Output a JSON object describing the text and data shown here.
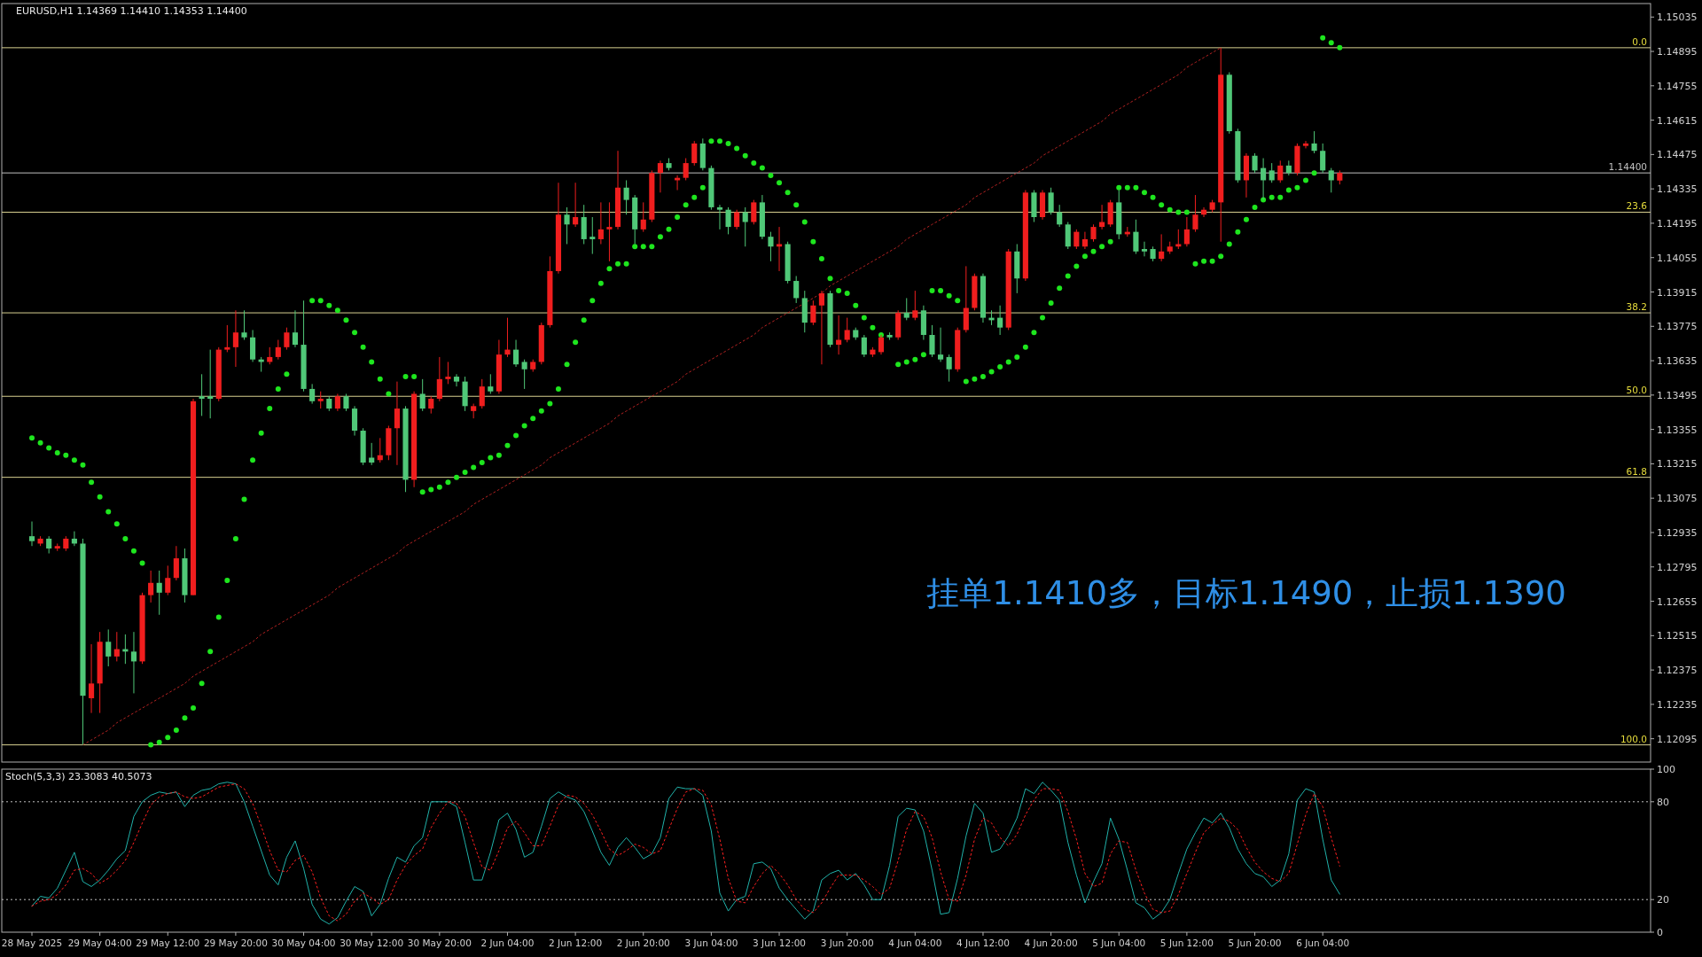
{
  "chart_data": [
    {
      "type": "candlestick",
      "title": "EURUSD,H1  1.14369 1.14410 1.14353 1.14400",
      "annotations": [
        "挂单1.1410多，目标1.1490，止损1.1390",
        {
          "text": "0.0",
          "y": 1.1491
        },
        {
          "text": "23.6",
          "y": 1.1424
        },
        {
          "text": "38.2",
          "y": 1.1383
        },
        {
          "text": "50.0",
          "y": 1.1349
        },
        {
          "text": "61.8",
          "y": 1.1316
        },
        {
          "text": "100.0",
          "y": 1.1207
        }
      ],
      "ylim": [
        1.12,
        1.1509
      ],
      "yticks": [
        1.12095,
        1.12235,
        1.12375,
        1.12515,
        1.12655,
        1.12795,
        1.12935,
        1.13075,
        1.13215,
        1.13355,
        1.13495,
        1.13635,
        1.13775,
        1.13915,
        1.14055,
        1.14195,
        1.14335,
        1.14475,
        1.14615,
        1.14755,
        1.14895,
        1.15035
      ],
      "ref_lines": [
        {
          "axis": "y",
          "value": 1.1491,
          "color": "#d8d090",
          "line_style": "solid"
        },
        {
          "axis": "y",
          "value": 1.1424,
          "color": "#d8d090",
          "line_style": "solid"
        },
        {
          "axis": "y",
          "value": 1.1383,
          "color": "#d8d090",
          "line_style": "solid"
        },
        {
          "axis": "y",
          "value": 1.1349,
          "color": "#d8d090",
          "line_style": "solid"
        },
        {
          "axis": "y",
          "value": 1.1316,
          "color": "#d8d090",
          "line_style": "solid"
        },
        {
          "axis": "y",
          "value": 1.1207,
          "color": "#d8d090",
          "line_style": "solid"
        },
        {
          "axis": "y",
          "value": 1.144,
          "label": "1.14400",
          "color": "#c0c0c0",
          "line_style": "solid"
        }
      ],
      "series": [
        {
          "color": "#f01e1e",
          "ohlc": [
            null,
            [
              1.1289,
              1.1292,
              1.1288,
              1.1291
            ],
            null,
            [
              1.1287,
              1.1289,
              1.1286,
              1.1288
            ],
            [
              1.1287,
              1.1292,
              1.1286,
              1.1291
            ],
            null,
            null,
            [
              1.1226,
              1.1248,
              1.122,
              1.1232
            ],
            [
              1.1232,
              1.1253,
              1.122,
              1.1249
            ],
            null,
            [
              1.1243,
              1.1253,
              1.1241,
              1.1246
            ],
            null,
            null,
            [
              1.1241,
              1.1269,
              1.124,
              1.1268
            ],
            [
              1.1268,
              1.1278,
              1.1265,
              1.1273
            ],
            null,
            [
              1.1269,
              1.128,
              1.1268,
              1.1275
            ],
            [
              1.1275,
              1.1288,
              1.1274,
              1.1283
            ],
            null,
            [
              1.1268,
              1.1348,
              1.1268,
              1.1347
            ],
            null,
            null,
            [
              1.1348,
              1.1369,
              1.1347,
              1.1368
            ],
            [
              1.1368,
              1.1378,
              1.1367,
              1.1369
            ],
            [
              1.1369,
              1.1384,
              1.1361,
              1.1375
            ],
            null,
            null,
            null,
            [
              1.1363,
              1.1369,
              1.1362,
              1.1365
            ],
            [
              1.1365,
              1.1372,
              1.1364,
              1.1369
            ],
            [
              1.1369,
              1.1377,
              1.1368,
              1.1375
            ],
            null,
            null,
            null,
            [
              1.1347,
              1.1351,
              1.1344,
              1.1348
            ],
            null,
            [
              1.1344,
              1.135,
              1.1343,
              1.1349
            ],
            null,
            null,
            null,
            null,
            [
              1.1323,
              1.1332,
              1.1322,
              1.1325
            ],
            [
              1.1325,
              1.1337,
              1.1323,
              1.1336
            ],
            [
              1.1336,
              1.1355,
              1.1321,
              1.1344
            ],
            null,
            [
              1.1315,
              1.1351,
              1.1312,
              1.135
            ],
            null,
            [
              1.1344,
              1.1349,
              1.1342,
              1.1348
            ],
            [
              1.1348,
              1.1365,
              1.1347,
              1.1356
            ],
            [
              1.1356,
              1.1363,
              1.1354,
              1.1357
            ],
            null,
            null,
            [
              1.1343,
              1.1346,
              1.134,
              1.1345
            ],
            [
              1.1345,
              1.1356,
              1.1344,
              1.1353
            ],
            null,
            [
              1.1351,
              1.1372,
              1.135,
              1.1366
            ],
            [
              1.1366,
              1.1381,
              1.1365,
              1.1368
            ],
            null,
            null,
            [
              1.136,
              1.1364,
              1.1359,
              1.1363
            ],
            [
              1.1363,
              1.1379,
              1.1362,
              1.1378
            ],
            [
              1.1378,
              1.1406,
              1.1377,
              1.14
            ],
            [
              1.14,
              1.1436,
              1.1399,
              1.1423
            ],
            null,
            [
              1.1419,
              1.1436,
              1.1418,
              1.1422
            ],
            null,
            null,
            [
              1.1413,
              1.1428,
              1.1411,
              1.1417
            ],
            [
              1.1417,
              1.1428,
              1.1404,
              1.1418
            ],
            [
              1.1418,
              1.1449,
              1.1417,
              1.1434
            ],
            null,
            null,
            [
              1.1417,
              1.1428,
              1.1416,
              1.1421
            ],
            [
              1.1421,
              1.1441,
              1.142,
              1.144
            ],
            [
              1.144,
              1.1445,
              1.1432,
              1.1444
            ],
            null,
            [
              1.1437,
              1.1439,
              1.1433,
              1.1438
            ],
            [
              1.1438,
              1.1446,
              1.1437,
              1.1444
            ],
            [
              1.1444,
              1.1453,
              1.1443,
              1.1452
            ],
            null,
            null,
            null,
            null,
            [
              1.1418,
              1.1425,
              1.1417,
              1.1424
            ],
            null,
            [
              1.142,
              1.1429,
              1.1419,
              1.1428
            ],
            null,
            null,
            [
              1.141,
              1.1418,
              1.14,
              1.1411
            ],
            null,
            null,
            null,
            [
              1.1379,
              1.1388,
              1.1378,
              1.1386
            ],
            [
              1.1386,
              1.1392,
              1.1362,
              1.1391
            ],
            null,
            [
              1.137,
              1.1382,
              1.1366,
              1.1372
            ],
            [
              1.1372,
              1.1381,
              1.1371,
              1.1376
            ],
            null,
            null,
            [
              1.1366,
              1.1369,
              1.1365,
              1.1368
            ],
            [
              1.1367,
              1.1374,
              1.1366,
              1.1373
            ],
            null,
            [
              1.1373,
              1.1384,
              1.1372,
              1.1383
            ],
            null,
            [
              1.1381,
              1.1392,
              1.138,
              1.1384
            ],
            null,
            null,
            null,
            null,
            [
              1.136,
              1.1377,
              1.1359,
              1.1376
            ],
            [
              1.1376,
              1.1402,
              1.1375,
              1.1385
            ],
            [
              1.1385,
              1.1399,
              1.1384,
              1.1398
            ],
            null,
            null,
            null,
            [
              1.1377,
              1.1409,
              1.1376,
              1.1408
            ],
            null,
            [
              1.1397,
              1.1433,
              1.1396,
              1.1432
            ],
            null,
            [
              1.1422,
              1.1433,
              1.1421,
              1.1432
            ],
            null,
            null,
            null,
            [
              1.141,
              1.1417,
              1.1409,
              1.1416
            ],
            [
              1.141,
              1.1416,
              1.1409,
              1.1413
            ],
            [
              1.1413,
              1.1419,
              1.1412,
              1.1418
            ],
            [
              1.1418,
              1.1427,
              1.1417,
              1.142
            ],
            [
              1.1419,
              1.1429,
              1.1418,
              1.1428
            ],
            null,
            [
              1.1415,
              1.1418,
              1.1414,
              1.1416
            ],
            null,
            null,
            null,
            [
              1.1405,
              1.1415,
              1.1404,
              1.1408
            ],
            [
              1.1408,
              1.1412,
              1.1407,
              1.141
            ],
            [
              1.141,
              1.1417,
              1.1409,
              1.1411
            ],
            [
              1.1411,
              1.1422,
              1.141,
              1.1417
            ],
            [
              1.1417,
              1.1431,
              1.1416,
              1.1423
            ],
            [
              1.1423,
              1.1426,
              1.1422,
              1.1425
            ],
            [
              1.1425,
              1.1429,
              1.1424,
              1.1428
            ],
            [
              1.1428,
              1.1491,
              1.1412,
              1.148
            ],
            null,
            null,
            [
              1.1437,
              1.1448,
              1.143,
              1.1447
            ],
            null,
            null,
            null,
            [
              1.1437,
              1.1445,
              1.1436,
              1.1443
            ],
            null,
            [
              1.144,
              1.1452,
              1.1439,
              1.1451
            ],
            [
              1.1451,
              1.1453,
              1.145,
              1.1452
            ],
            null,
            null,
            null,
            [
              1.14369,
              1.1441,
              1.14353,
              1.144
            ]
          ]
        },
        {
          "color": "#50c878",
          "ohlc": [
            [
              1.1292,
              1.1298,
              1.1288,
              1.129
            ],
            null,
            [
              1.1291,
              1.1292,
              1.1285,
              1.1287
            ],
            null,
            null,
            [
              1.1291,
              1.1294,
              1.1288,
              1.1289
            ],
            [
              1.1289,
              1.1291,
              1.1207,
              1.1227
            ],
            null,
            null,
            [
              1.1249,
              1.1254,
              1.1239,
              1.1243
            ],
            null,
            [
              1.1246,
              1.1252,
              1.124,
              1.1245
            ],
            [
              1.1245,
              1.1253,
              1.1228,
              1.1241
            ],
            null,
            null,
            [
              1.1273,
              1.1278,
              1.126,
              1.1269
            ],
            null,
            null,
            [
              1.1283,
              1.1287,
              1.1265,
              1.1268
            ],
            null,
            [
              1.1349,
              1.1358,
              1.1341,
              1.1348
            ],
            [
              1.1349,
              1.1368,
              1.134,
              1.1348
            ],
            null,
            null,
            null,
            [
              1.1375,
              1.1384,
              1.1372,
              1.1373
            ],
            [
              1.1373,
              1.1376,
              1.1363,
              1.1364
            ],
            [
              1.1364,
              1.1365,
              1.1359,
              1.1363
            ],
            null,
            null,
            null,
            [
              1.1375,
              1.1384,
              1.1369,
              1.137
            ],
            [
              1.137,
              1.1388,
              1.1351,
              1.1352
            ],
            [
              1.1352,
              1.1354,
              1.1346,
              1.1347
            ],
            null,
            [
              1.1348,
              1.1349,
              1.1343,
              1.1344
            ],
            null,
            [
              1.1349,
              1.135,
              1.1343,
              1.1344
            ],
            [
              1.1344,
              1.1345,
              1.1333,
              1.1335
            ],
            [
              1.1335,
              1.1336,
              1.1321,
              1.1322
            ],
            [
              1.1324,
              1.133,
              1.1321,
              1.1322
            ],
            null,
            null,
            null,
            [
              1.1344,
              1.1345,
              1.131,
              1.1315
            ],
            null,
            [
              1.135,
              1.1356,
              1.1343,
              1.1344
            ],
            null,
            null,
            null,
            [
              1.1357,
              1.1358,
              1.1353,
              1.1355
            ],
            [
              1.1355,
              1.1357,
              1.1343,
              1.1345
            ],
            null,
            null,
            [
              1.1353,
              1.1358,
              1.135,
              1.1351
            ],
            null,
            null,
            [
              1.1368,
              1.1372,
              1.1361,
              1.1362
            ],
            [
              1.1363,
              1.1364,
              1.1352,
              1.136
            ],
            null,
            null,
            null,
            null,
            [
              1.1423,
              1.1426,
              1.1411,
              1.1419
            ],
            null,
            [
              1.1422,
              1.1427,
              1.1411,
              1.1413
            ],
            [
              1.1414,
              1.1422,
              1.1407,
              1.1413
            ],
            null,
            null,
            null,
            [
              1.1434,
              1.1437,
              1.1423,
              1.1429
            ],
            [
              1.143,
              1.1431,
              1.1411,
              1.1417
            ],
            null,
            null,
            null,
            [
              1.1444,
              1.1446,
              1.1441,
              1.1442
            ],
            null,
            null,
            null,
            [
              1.1452,
              1.1454,
              1.1441,
              1.1442
            ],
            [
              1.1442,
              1.1443,
              1.1425,
              1.1426
            ],
            [
              1.1426,
              1.1427,
              1.1417,
              1.1425
            ],
            [
              1.1425,
              1.1426,
              1.1415,
              1.1418
            ],
            null,
            [
              1.1424,
              1.1426,
              1.141,
              1.142
            ],
            null,
            [
              1.1428,
              1.1431,
              1.1413,
              1.1414
            ],
            [
              1.1414,
              1.1416,
              1.1404,
              1.141
            ],
            null,
            [
              1.1411,
              1.1412,
              1.1395,
              1.1396
            ],
            [
              1.1396,
              1.1398,
              1.1387,
              1.1389
            ],
            [
              1.1389,
              1.1392,
              1.1375,
              1.1379
            ],
            null,
            null,
            [
              1.1391,
              1.1392,
              1.1369,
              1.137
            ],
            null,
            null,
            [
              1.1376,
              1.1377,
              1.1372,
              1.1373
            ],
            [
              1.1373,
              1.1374,
              1.1365,
              1.1366
            ],
            null,
            null,
            [
              1.1374,
              1.1375,
              1.1372,
              1.1373
            ],
            null,
            [
              1.1383,
              1.1389,
              1.138,
              1.1381
            ],
            null,
            [
              1.1384,
              1.1386,
              1.1372,
              1.1374
            ],
            [
              1.1374,
              1.1378,
              1.1365,
              1.1366
            ],
            [
              1.1366,
              1.1377,
              1.1363,
              1.1364
            ],
            [
              1.1365,
              1.1366,
              1.1355,
              1.136
            ],
            null,
            null,
            null,
            [
              1.1398,
              1.1399,
              1.1379,
              1.1381
            ],
            [
              1.1381,
              1.1384,
              1.1378,
              1.138
            ],
            [
              1.1381,
              1.1386,
              1.1374,
              1.1377
            ],
            null,
            [
              1.1408,
              1.1411,
              1.1391,
              1.1397
            ],
            null,
            [
              1.1432,
              1.1433,
              1.142,
              1.1422
            ],
            null,
            [
              1.1432,
              1.1434,
              1.1423,
              1.1424
            ],
            [
              1.1424,
              1.1427,
              1.1418,
              1.1419
            ],
            [
              1.1419,
              1.142,
              1.1409,
              1.141
            ],
            null,
            null,
            null,
            null,
            null,
            [
              1.1428,
              1.1433,
              1.1413,
              1.1415
            ],
            null,
            [
              1.1416,
              1.1421,
              1.1407,
              1.1408
            ],
            [
              1.1409,
              1.1412,
              1.1406,
              1.1408
            ],
            [
              1.1409,
              1.141,
              1.1404,
              1.1405
            ],
            null,
            null,
            null,
            null,
            null,
            null,
            null,
            null,
            [
              1.148,
              1.1481,
              1.1456,
              1.1457
            ],
            [
              1.1457,
              1.1458,
              1.1436,
              1.1437
            ],
            null,
            [
              1.1447,
              1.1448,
              1.144,
              1.1441
            ],
            [
              1.1442,
              1.1446,
              1.1429,
              1.1437
            ],
            [
              1.1441,
              1.1444,
              1.1436,
              1.1437
            ],
            null,
            [
              1.1443,
              1.1445,
              1.1439,
              1.144
            ],
            null,
            null,
            [
              1.1452,
              1.1457,
              1.1448,
              1.1449
            ],
            [
              1.1449,
              1.1452,
              1.144,
              1.1441
            ],
            [
              1.1441,
              1.1442,
              1.1432,
              1.1437
            ],
            null
          ]
        },
        {
          "type": "scatter",
          "color": "#1ee61e",
          "marker": "circle",
          "values": [
            1.1332,
            1.133,
            1.1328,
            1.1326,
            1.1325,
            1.1323,
            1.1321,
            1.1314,
            1.1308,
            1.1302,
            1.1297,
            1.1291,
            1.1286,
            1.1281,
            1.1207,
            1.1208,
            1.121,
            1.1213,
            1.1218,
            1.1222,
            1.1232,
            1.1245,
            1.1259,
            1.1274,
            1.1291,
            1.1307,
            1.1323,
            1.1334,
            1.1344,
            1.1352,
            1.1358,
            null,
            null,
            1.1388,
            1.1388,
            1.1386,
            1.1384,
            1.138,
            1.1375,
            1.1369,
            1.1363,
            1.1356,
            1.135,
            null,
            1.1357,
            1.1357,
            1.131,
            1.1311,
            1.1312,
            1.1314,
            1.1316,
            1.1318,
            1.132,
            1.1322,
            1.1324,
            1.1325,
            1.1329,
            1.1333,
            1.1337,
            1.134,
            1.1343,
            1.1346,
            1.1352,
            1.1362,
            1.1371,
            1.138,
            1.1388,
            1.1395,
            1.1401,
            1.1403,
            1.1403,
            1.141,
            1.141,
            1.141,
            1.1414,
            1.1417,
            1.1422,
            1.1427,
            1.143,
            1.1434,
            1.1453,
            1.1453,
            1.1452,
            1.145,
            1.1447,
            1.1444,
            1.1442,
            1.1439,
            1.1436,
            1.1432,
            1.1427,
            1.142,
            1.1412,
            1.1405,
            1.1397,
            1.1392,
            1.1391,
            1.1386,
            1.1381,
            1.1377,
            1.1374,
            null,
            1.1362,
            1.1363,
            1.1364,
            1.1366,
            1.1392,
            1.1392,
            1.139,
            1.1388,
            1.1355,
            1.1356,
            1.1357,
            1.1359,
            1.1361,
            1.1363,
            1.1365,
            1.1369,
            1.1375,
            1.1381,
            1.1387,
            1.1393,
            1.1398,
            1.1402,
            1.1406,
            1.1408,
            1.141,
            1.1412,
            1.1434,
            1.1434,
            1.1434,
            1.1432,
            1.143,
            1.1427,
            1.1425,
            1.1424,
            1.1424,
            1.1403,
            1.1404,
            1.1404,
            1.1406,
            1.1411,
            1.1416,
            1.1421,
            1.1426,
            1.1429,
            1.143,
            1.143,
            1.1433,
            1.1434,
            1.1437,
            1.144,
            1.1495,
            1.1493,
            1.1491
          ]
        },
        {
          "type": "line",
          "color": "#b22222",
          "line_style": "dotted",
          "values": [
            null,
            null,
            null,
            null,
            null,
            null,
            1.1207,
            1.1209,
            1.1211,
            1.1213,
            1.1216,
            1.1218,
            1.122,
            1.1222,
            1.1224,
            1.1226,
            1.1228,
            1.123,
            1.1232,
            1.1235,
            1.1237,
            1.1239,
            1.1241,
            1.1243,
            1.1245,
            1.1247,
            1.1249,
            1.1252,
            1.1254,
            1.1256,
            1.1258,
            1.126,
            1.1262,
            1.1264,
            1.1266,
            1.1268,
            1.1271,
            1.1273,
            1.1275,
            1.1277,
            1.1279,
            1.1281,
            1.1283,
            1.1285,
            1.1288,
            1.129,
            1.1292,
            1.1294,
            1.1296,
            1.1298,
            1.13,
            1.1302,
            1.1305,
            1.1307,
            1.1309,
            1.1311,
            1.1313,
            1.1315,
            1.1317,
            1.1319,
            1.1321,
            1.1324,
            1.1326,
            1.1328,
            1.133,
            1.1332,
            1.1334,
            1.1336,
            1.1338,
            1.1341,
            1.1343,
            1.1345,
            1.1347,
            1.1349,
            1.1351,
            1.1353,
            1.1355,
            1.1358,
            1.136,
            1.1362,
            1.1364,
            1.1366,
            1.1368,
            1.137,
            1.1372,
            1.1374,
            1.1377,
            1.1379,
            1.1381,
            1.1383,
            1.1385,
            1.1387,
            1.1389,
            1.1391,
            1.1394,
            1.1396,
            1.1398,
            1.14,
            1.1402,
            1.1404,
            1.1406,
            1.1408,
            1.141,
            1.1413,
            1.1415,
            1.1417,
            1.1419,
            1.1421,
            1.1423,
            1.1425,
            1.1427,
            1.143,
            1.1432,
            1.1434,
            1.1436,
            1.1438,
            1.144,
            1.1442,
            1.1444,
            1.1447,
            1.1449,
            1.1451,
            1.1453,
            1.1455,
            1.1457,
            1.1459,
            1.1461,
            1.1464,
            1.1466,
            1.1468,
            1.147,
            1.1472,
            1.1474,
            1.1476,
            1.1478,
            1.148,
            1.1483,
            1.1485,
            1.1487,
            1.1489,
            1.1491,
            null,
            null,
            null,
            null,
            null,
            null,
            null,
            null,
            null,
            null,
            null,
            null,
            null,
            null
          ]
        }
      ]
    },
    {
      "type": "line",
      "title": "Stoch(5,3,3) 23.3083 40.5073",
      "categories": [
        "28 May 2025",
        null,
        null,
        null,
        null,
        null,
        null,
        null,
        "29 May 04:00",
        null,
        null,
        null,
        null,
        null,
        null,
        null,
        "29 May 12:00",
        null,
        null,
        null,
        null,
        null,
        null,
        null,
        "29 May 20:00",
        null,
        null,
        null,
        null,
        null,
        null,
        null,
        "30 May 04:00",
        null,
        null,
        null,
        null,
        null,
        null,
        null,
        "30 May 12:00",
        null,
        null,
        null,
        null,
        null,
        null,
        null,
        "30 May 20:00",
        null,
        null,
        null,
        null,
        null,
        null,
        null,
        "2 Jun 04:00",
        null,
        null,
        null,
        null,
        null,
        null,
        null,
        "2 Jun 12:00",
        null,
        null,
        null,
        null,
        null,
        null,
        null,
        "2 Jun 20:00",
        null,
        null,
        null,
        null,
        null,
        null,
        null,
        "3 Jun 04:00",
        null,
        null,
        null,
        null,
        null,
        null,
        null,
        "3 Jun 12:00",
        null,
        null,
        null,
        null,
        null,
        null,
        null,
        "3 Jun 20:00",
        null,
        null,
        null,
        null,
        null,
        null,
        null,
        "4 Jun 04:00",
        null,
        null,
        null,
        null,
        null,
        null,
        null,
        "4 Jun 12:00",
        null,
        null,
        null,
        null,
        null,
        null,
        null,
        "4 Jun 20:00",
        null,
        null,
        null,
        null,
        null,
        null,
        null,
        "5 Jun 04:00",
        null,
        null,
        null,
        null,
        null,
        null,
        null,
        "5 Jun 12:00",
        null,
        null,
        null,
        null,
        null,
        null,
        null,
        "5 Jun 20:00",
        null,
        null,
        null,
        null,
        null,
        null,
        null,
        "6 Jun 04:00",
        null,
        null
      ],
      "ylim": [
        0,
        100
      ],
      "yticks": [
        0,
        20,
        80,
        100
      ],
      "ref_lines": [
        {
          "axis": "y",
          "value": 80,
          "color": "#c0c0c0",
          "line_style": "dotted"
        },
        {
          "axis": "y",
          "value": 20,
          "color": "#c0c0c0",
          "line_style": "dotted"
        }
      ],
      "series": [
        {
          "color": "#20b2aa",
          "line_style": "solid",
          "values": [
            16,
            22,
            21,
            27,
            38,
            49,
            31,
            28,
            32,
            38,
            45,
            50,
            71,
            80,
            84,
            86,
            85,
            86,
            77,
            84,
            87,
            88,
            91,
            92,
            91,
            80,
            65,
            50,
            35,
            29,
            46,
            56,
            39,
            17,
            8,
            5,
            9,
            19,
            28,
            25,
            10,
            17,
            33,
            46,
            43,
            53,
            58,
            80,
            80,
            80,
            77,
            55,
            32,
            32,
            49,
            69,
            73,
            63,
            46,
            49,
            65,
            82,
            86,
            83,
            81,
            74,
            62,
            49,
            41,
            52,
            58,
            52,
            45,
            48,
            58,
            82,
            89,
            88,
            88,
            84,
            62,
            24,
            13,
            20,
            22,
            42,
            43,
            39,
            27,
            20,
            14,
            8,
            13,
            32,
            36,
            38,
            32,
            36,
            29,
            20,
            20,
            41,
            71,
            76,
            75,
            62,
            38,
            11,
            12,
            33,
            59,
            79,
            73,
            49,
            51,
            59,
            70,
            88,
            85,
            92,
            87,
            81,
            55,
            35,
            18,
            31,
            42,
            70,
            57,
            38,
            18,
            15,
            8,
            12,
            20,
            36,
            51,
            61,
            70,
            67,
            73,
            64,
            51,
            42,
            36,
            34,
            28,
            32,
            48,
            81,
            88,
            86,
            57,
            32,
            23.3
          ]
        },
        {
          "color": "#ff2020",
          "line_style": "dotted",
          "values": [
            16,
            19,
            20,
            23,
            29,
            38,
            39,
            36,
            30,
            33,
            38,
            44,
            55,
            67,
            78,
            83,
            85,
            86,
            83,
            82,
            83,
            86,
            89,
            90,
            91,
            88,
            79,
            65,
            50,
            38,
            37,
            44,
            47,
            37,
            21,
            10,
            7,
            11,
            19,
            24,
            21,
            17,
            20,
            32,
            41,
            47,
            51,
            64,
            73,
            80,
            79,
            71,
            55,
            40,
            38,
            50,
            64,
            68,
            61,
            53,
            53,
            65,
            78,
            84,
            83,
            79,
            72,
            62,
            51,
            47,
            50,
            54,
            52,
            48,
            50,
            63,
            76,
            86,
            88,
            87,
            78,
            57,
            33,
            19,
            18,
            28,
            36,
            41,
            36,
            29,
            20,
            14,
            12,
            18,
            27,
            35,
            35,
            35,
            32,
            28,
            23,
            27,
            44,
            63,
            74,
            71,
            58,
            37,
            20,
            19,
            35,
            57,
            70,
            67,
            58,
            53,
            60,
            72,
            81,
            88,
            88,
            87,
            74,
            57,
            36,
            28,
            30,
            48,
            56,
            55,
            38,
            24,
            14,
            12,
            13,
            23,
            36,
            49,
            61,
            66,
            70,
            68,
            63,
            52,
            43,
            37,
            33,
            31,
            36,
            54,
            72,
            85,
            77,
            58,
            40.5
          ]
        }
      ]
    }
  ]
}
